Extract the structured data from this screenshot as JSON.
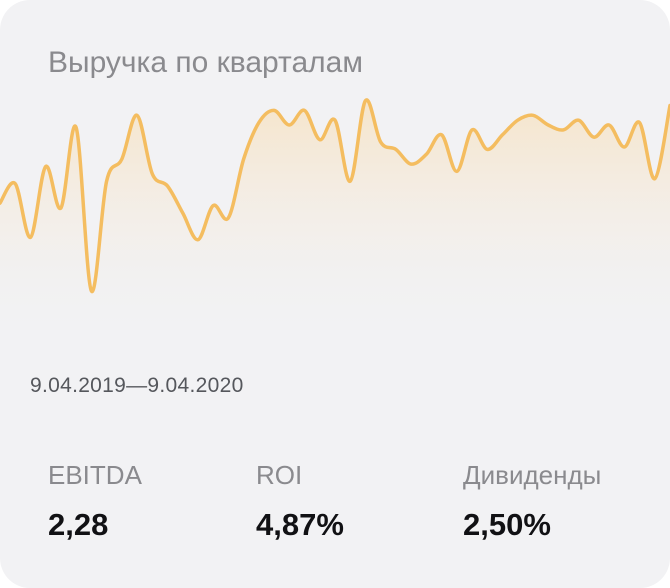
{
  "title": "Выручка по кварталам",
  "date_range": "9.04.2019—9.04.2020",
  "colors": {
    "line": "#f4bd60",
    "fill_top": "#f6e4c8",
    "fill_bottom": "#f2f2f4",
    "card": "#f2f2f4"
  },
  "metrics": [
    {
      "label": "EBITDA",
      "value": "2,28"
    },
    {
      "label": "ROI",
      "value": "4,87%"
    },
    {
      "label": "Дивиденды",
      "value": "2,50%"
    }
  ],
  "chart_data": {
    "type": "area",
    "title": "Выручка по кварталам",
    "xlabel": "",
    "ylabel": "",
    "grid": false,
    "legend": "none",
    "ylim": [
      0,
      100
    ],
    "x": [
      0,
      1,
      2,
      3,
      4,
      5,
      6,
      7,
      8,
      9,
      10,
      11,
      12,
      13,
      14,
      15,
      16,
      17,
      18,
      19,
      20,
      21,
      22,
      23,
      24,
      25,
      26,
      27,
      28,
      29,
      30,
      31,
      32,
      33,
      34,
      35,
      36,
      37,
      38,
      39,
      40,
      41,
      42,
      43,
      44
    ],
    "values": [
      52,
      60,
      38,
      67,
      50,
      83,
      16,
      61,
      70,
      88,
      64,
      59,
      48,
      37,
      51,
      46,
      70,
      85,
      90,
      84,
      90,
      78,
      86,
      61,
      94,
      77,
      74,
      68,
      72,
      80,
      65,
      82,
      74,
      80,
      86,
      88,
      84,
      82,
      86,
      79,
      84,
      75,
      85,
      62,
      92
    ]
  }
}
